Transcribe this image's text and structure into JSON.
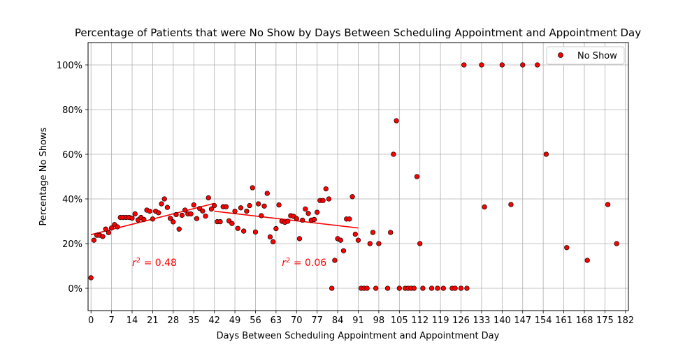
{
  "chart_data": {
    "type": "scatter",
    "title": "Percentage of Patients that were No Show by Days Between Scheduling Appointment and Appointment Day",
    "xlabel": "Days Between Scheduling Appointment and Appointment Day",
    "ylabel": "Percentage No Shows",
    "xlim": [
      -1,
      183
    ],
    "ylim": [
      -0.1,
      1.1
    ],
    "x_ticks": [
      0,
      7,
      14,
      21,
      28,
      35,
      42,
      49,
      56,
      63,
      70,
      77,
      84,
      91,
      98,
      105,
      112,
      119,
      126,
      133,
      140,
      147,
      154,
      161,
      168,
      175,
      182
    ],
    "x_tick_labels": [
      "0",
      "7",
      "14",
      "21",
      "28",
      "35",
      "42",
      "49",
      "56",
      "63",
      "70",
      "77",
      "84",
      "91",
      "98",
      "105",
      "112",
      "119",
      "126",
      "133",
      "140",
      "147",
      "154",
      "161",
      "168",
      "175",
      "182"
    ],
    "y_ticks": [
      0,
      0.2,
      0.4,
      0.6,
      0.8,
      1.0
    ],
    "y_tick_labels": [
      "0%",
      "20%",
      "40%",
      "60%",
      "80%",
      "100%"
    ],
    "grid": true,
    "legend": {
      "position": "top-right",
      "entries": [
        "No Show"
      ]
    },
    "colors": {
      "marker_fill": "#ff0000",
      "marker_edge": "#000000",
      "fit_line": "#ff0000",
      "grid": "#b0b0b0",
      "annotation": "#ff0000"
    },
    "series": [
      {
        "name": "No Show",
        "points": [
          [
            0,
            0.047
          ],
          [
            1,
            0.215
          ],
          [
            2,
            0.237
          ],
          [
            3,
            0.237
          ],
          [
            4,
            0.232
          ],
          [
            5,
            0.265
          ],
          [
            6,
            0.249
          ],
          [
            7,
            0.27
          ],
          [
            8,
            0.285
          ],
          [
            9,
            0.275
          ],
          [
            10,
            0.317
          ],
          [
            11,
            0.317
          ],
          [
            12,
            0.317
          ],
          [
            13,
            0.317
          ],
          [
            14,
            0.314
          ],
          [
            15,
            0.333
          ],
          [
            16,
            0.306
          ],
          [
            17,
            0.317
          ],
          [
            18,
            0.308
          ],
          [
            19,
            0.35
          ],
          [
            20,
            0.345
          ],
          [
            21,
            0.31
          ],
          [
            22,
            0.345
          ],
          [
            23,
            0.338
          ],
          [
            24,
            0.378
          ],
          [
            25,
            0.4
          ],
          [
            26,
            0.362
          ],
          [
            27,
            0.313
          ],
          [
            28,
            0.297
          ],
          [
            29,
            0.33
          ],
          [
            30,
            0.265
          ],
          [
            31,
            0.327
          ],
          [
            32,
            0.35
          ],
          [
            33,
            0.333
          ],
          [
            34,
            0.333
          ],
          [
            35,
            0.373
          ],
          [
            36,
            0.312
          ],
          [
            37,
            0.357
          ],
          [
            38,
            0.346
          ],
          [
            39,
            0.323
          ],
          [
            40,
            0.405
          ],
          [
            41,
            0.355
          ],
          [
            42,
            0.37
          ],
          [
            43,
            0.298
          ],
          [
            44,
            0.298
          ],
          [
            45,
            0.365
          ],
          [
            46,
            0.365
          ],
          [
            47,
            0.302
          ],
          [
            48,
            0.29
          ],
          [
            49,
            0.345
          ],
          [
            50,
            0.268
          ],
          [
            51,
            0.36
          ],
          [
            52,
            0.256
          ],
          [
            53,
            0.345
          ],
          [
            54,
            0.37
          ],
          [
            55,
            0.45
          ],
          [
            56,
            0.252
          ],
          [
            57,
            0.378
          ],
          [
            58,
            0.325
          ],
          [
            59,
            0.368
          ],
          [
            60,
            0.425
          ],
          [
            61,
            0.23
          ],
          [
            62,
            0.208
          ],
          [
            63,
            0.267
          ],
          [
            64,
            0.373
          ],
          [
            65,
            0.3
          ],
          [
            66,
            0.295
          ],
          [
            67,
            0.3
          ],
          [
            68,
            0.325
          ],
          [
            69,
            0.322
          ],
          [
            70,
            0.312
          ],
          [
            71,
            0.222
          ],
          [
            72,
            0.305
          ],
          [
            73,
            0.355
          ],
          [
            74,
            0.335
          ],
          [
            75,
            0.305
          ],
          [
            76,
            0.308
          ],
          [
            77,
            0.34
          ],
          [
            78,
            0.393
          ],
          [
            79,
            0.393
          ],
          [
            80,
            0.445
          ],
          [
            81,
            0.4
          ],
          [
            82,
            0.0
          ],
          [
            83,
            0.125
          ],
          [
            84,
            0.222
          ],
          [
            85,
            0.215
          ],
          [
            86,
            0.168
          ],
          [
            87,
            0.31
          ],
          [
            88,
            0.31
          ],
          [
            89,
            0.41
          ],
          [
            90,
            0.242
          ],
          [
            91,
            0.215
          ],
          [
            92,
            0.0
          ],
          [
            93,
            0.0
          ],
          [
            94,
            0.0
          ],
          [
            95,
            0.2
          ],
          [
            96,
            0.25
          ],
          [
            97,
            0.0
          ],
          [
            98,
            0.2
          ],
          [
            101,
            0.0
          ],
          [
            102,
            0.25
          ],
          [
            103,
            0.6
          ],
          [
            104,
            0.75
          ],
          [
            105,
            0.0
          ],
          [
            107,
            0.0
          ],
          [
            108,
            0.0
          ],
          [
            109,
            0.0
          ],
          [
            110,
            0.0
          ],
          [
            111,
            0.5
          ],
          [
            112,
            0.2
          ],
          [
            113,
            0.0
          ],
          [
            116,
            0.0
          ],
          [
            118,
            0.0
          ],
          [
            120,
            0.0
          ],
          [
            123,
            0.0
          ],
          [
            124,
            0.0
          ],
          [
            126,
            0.0
          ],
          [
            127,
            1.0
          ],
          [
            128,
            0.0
          ],
          [
            133,
            1.0
          ],
          [
            134,
            0.364
          ],
          [
            140,
            1.0
          ],
          [
            143,
            0.375
          ],
          [
            147,
            1.0
          ],
          [
            152,
            1.0
          ],
          [
            155,
            0.6
          ],
          [
            162,
            0.182
          ],
          [
            169,
            0.125
          ],
          [
            176,
            0.375
          ],
          [
            179,
            0.2
          ]
        ]
      }
    ],
    "fit_lines": [
      {
        "x": [
          0,
          42
        ],
        "y": [
          0.24,
          0.38
        ]
      },
      {
        "x": [
          42,
          91
        ],
        "y": [
          0.345,
          0.27
        ]
      }
    ],
    "annotations": [
      {
        "x": 14,
        "y": 0.1,
        "text": "$r^2 = 0.48$"
      },
      {
        "x": 65,
        "y": 0.1,
        "text": "$r^2 = 0.06$"
      }
    ]
  }
}
